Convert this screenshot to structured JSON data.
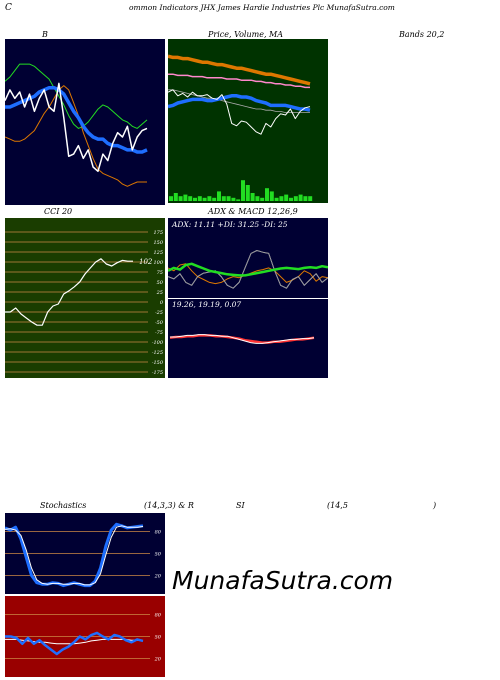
{
  "header": {
    "left_letter": "C",
    "title": "ommon  Indicators JHX  James Hardie  Industries Plc MunafaSutra.com"
  },
  "labels": {
    "bb": "B",
    "price_ma": "Price,  Volume,  MA",
    "bands": "Bands 20,2",
    "cci": "CCI 20",
    "adx_macd": "ADX  & MACD 12,26,9",
    "adx_values": "ADX: 11.11  +DI: 31.25 -DI: 25",
    "macd_values": "19.26,  19.19,  0.07",
    "stoch_a": "Stochastics",
    "stoch_b": "(14,3,3) & R",
    "stoch_c": "SI",
    "stoch_d": "(14,5",
    "stoch_e": ")",
    "watermark": "MunafaSutra.com"
  },
  "colors": {
    "panel_dark": "#000033",
    "panel_green": "#003300",
    "panel_red": "#990000",
    "cci_bg": "#1a3d00",
    "grid_orange": "#cc8844",
    "blue": "#1e6eff",
    "green": "#22dd22",
    "orange": "#dd7700",
    "white": "#ffffff"
  },
  "chart_data": [
    {
      "type": "line",
      "name": "bollinger-bands",
      "series": [
        {
          "name": "upper",
          "values": [
            74,
            76,
            79,
            82,
            82,
            82,
            81,
            79,
            77,
            75,
            71,
            67,
            63,
            58,
            54,
            52,
            53,
            55,
            58,
            61,
            63,
            62,
            60,
            58,
            56,
            55,
            53,
            52,
            54,
            56
          ]
        },
        {
          "name": "middle",
          "values": [
            62,
            62,
            63,
            64,
            65,
            66,
            67,
            69,
            70,
            71,
            71,
            70,
            68,
            64,
            60,
            57,
            53,
            50,
            48,
            47,
            47,
            45,
            44,
            44,
            43,
            42,
            42,
            41,
            41,
            42
          ]
        },
        {
          "name": "lower",
          "values": [
            48,
            47,
            46,
            46,
            47,
            49,
            51,
            55,
            59,
            62,
            66,
            70,
            72,
            70,
            64,
            58,
            50,
            44,
            38,
            33,
            31,
            30,
            29,
            28,
            26,
            25,
            26,
            27,
            27,
            27
          ]
        },
        {
          "name": "close",
          "values": [
            65,
            70,
            66,
            69,
            62,
            68,
            60,
            66,
            70,
            62,
            60,
            73,
            57,
            39,
            40,
            44,
            38,
            42,
            34,
            32,
            40,
            37,
            45,
            50,
            48,
            53,
            42,
            48,
            51,
            52
          ]
        }
      ]
    },
    {
      "type": "line",
      "name": "price-volume-ma",
      "series": [
        {
          "name": "ma-orange",
          "values": [
            94,
            93,
            93,
            92,
            92,
            91,
            90,
            89,
            89,
            88,
            87,
            87,
            86,
            85,
            84,
            84,
            83,
            82,
            81,
            80,
            79,
            79,
            78,
            77,
            76,
            75,
            74,
            73,
            72,
            71
          ]
        },
        {
          "name": "ma-pink",
          "values": [
            79,
            79,
            78,
            78,
            78,
            77,
            77,
            77,
            76,
            76,
            76,
            76,
            75,
            75,
            75,
            74,
            74,
            74,
            73,
            73,
            72,
            72,
            71,
            71,
            70,
            70,
            69,
            69,
            68,
            68
          ]
        },
        {
          "name": "ma-blue",
          "values": [
            52,
            53,
            55,
            56,
            57,
            58,
            58,
            58,
            57,
            57,
            58,
            59,
            60,
            61,
            61,
            60,
            60,
            59,
            57,
            56,
            55,
            53,
            53,
            53,
            53,
            52,
            51,
            50,
            50,
            49
          ]
        },
        {
          "name": "ma-grey",
          "values": [
            66,
            66,
            65,
            64,
            63,
            62,
            61,
            60,
            59,
            59,
            58,
            57,
            56,
            55,
            54,
            53,
            52,
            51,
            50,
            50,
            49,
            49,
            48,
            48,
            47,
            47,
            47,
            47,
            47,
            47
          ]
        },
        {
          "name": "close",
          "values": [
            64,
            66,
            61,
            63,
            60,
            64,
            61,
            61,
            62,
            59,
            58,
            62,
            54,
            38,
            36,
            40,
            39,
            35,
            31,
            29,
            38,
            35,
            42,
            46,
            45,
            50,
            42,
            48,
            51,
            52
          ]
        }
      ],
      "volume": [
        3,
        5,
        3,
        4,
        3,
        2,
        3,
        2,
        3,
        2,
        6,
        3,
        3,
        2,
        1,
        13,
        10,
        5,
        3,
        2,
        8,
        6,
        2,
        3,
        4,
        2,
        3,
        4,
        3,
        3
      ]
    },
    {
      "type": "line",
      "name": "cci-20",
      "ylim": [
        -175,
        175
      ],
      "yticks": [
        175,
        150,
        125,
        100,
        75,
        50,
        25,
        0,
        -25,
        -50,
        -75,
        -100,
        -125,
        -150,
        -175
      ],
      "last_value": 102,
      "series": [
        {
          "name": "cci",
          "values": [
            -25,
            -25,
            -15,
            -30,
            -40,
            -50,
            -58,
            -58,
            -25,
            -10,
            -5,
            20,
            28,
            38,
            50,
            70,
            85,
            100,
            108,
            95,
            90,
            98,
            104,
            102,
            102
          ]
        }
      ]
    },
    {
      "type": "line",
      "name": "adx",
      "adx": 11.11,
      "plus_di": 31.25,
      "minus_di": 25,
      "series": [
        {
          "name": "adx",
          "values": [
            40,
            45,
            42,
            50,
            52,
            48,
            44,
            40,
            38,
            36,
            34,
            33,
            32,
            32,
            34,
            36,
            38,
            40,
            42,
            44,
            45,
            44,
            43,
            45,
            46,
            45,
            48,
            46
          ]
        },
        {
          "name": "+di",
          "values": [
            30,
            26,
            35,
            20,
            15,
            30,
            36,
            38,
            40,
            30,
            15,
            10,
            20,
            45,
            70,
            75,
            72,
            70,
            40,
            15,
            10,
            25,
            30,
            15,
            25,
            35,
            20,
            28
          ]
        },
        {
          "name": "-di",
          "values": [
            45,
            40,
            50,
            52,
            40,
            30,
            25,
            20,
            18,
            20,
            26,
            30,
            28,
            32,
            36,
            40,
            42,
            45,
            40,
            30,
            20,
            24,
            30,
            40,
            35,
            22,
            30,
            28
          ]
        }
      ]
    },
    {
      "type": "line",
      "name": "macd",
      "macd": 19.26,
      "signal": 19.19,
      "histogram": 0.07,
      "series": [
        {
          "name": "macd",
          "values": [
            22,
            22,
            23,
            24,
            24,
            25,
            25,
            24,
            24,
            23,
            23,
            21,
            19,
            17,
            15,
            14,
            14,
            15,
            16,
            17,
            18,
            19,
            19,
            20,
            20,
            21
          ]
        },
        {
          "name": "signal",
          "values": [
            21,
            22,
            22,
            23,
            23,
            24,
            24,
            24,
            23,
            23,
            22,
            21,
            20,
            18,
            17,
            16,
            15,
            15,
            16,
            16,
            17,
            18,
            19,
            19,
            20,
            21
          ]
        }
      ]
    },
    {
      "type": "line",
      "name": "stochastics",
      "ylim": [
        0,
        100
      ],
      "yticks": [
        80,
        50,
        20
      ],
      "series": [
        {
          "name": "%k",
          "values": [
            85,
            82,
            86,
            70,
            45,
            20,
            10,
            8,
            8,
            10,
            9,
            6,
            8,
            10,
            8,
            6,
            6,
            12,
            30,
            60,
            82,
            90,
            88,
            85,
            86,
            87,
            88
          ]
        },
        {
          "name": "%d",
          "values": [
            83,
            84,
            82,
            75,
            55,
            30,
            14,
            9,
            8,
            9,
            9,
            8,
            8,
            9,
            9,
            7,
            7,
            10,
            22,
            48,
            72,
            86,
            88,
            86,
            86,
            86,
            87
          ]
        }
      ]
    },
    {
      "type": "line",
      "name": "rsi",
      "ylim": [
        0,
        100
      ],
      "yticks": [
        80,
        50,
        20
      ],
      "series": [
        {
          "name": "rsi",
          "values": [
            50,
            50,
            48,
            40,
            48,
            40,
            45,
            38,
            32,
            26,
            32,
            36,
            42,
            50,
            46,
            52,
            55,
            50,
            46,
            52,
            50,
            45,
            42,
            46,
            44
          ]
        },
        {
          "name": "rsi-ma",
          "values": [
            46,
            46,
            46,
            45,
            44,
            43,
            42,
            42,
            41,
            40,
            40,
            40,
            40,
            41,
            42,
            44,
            45,
            46,
            46,
            46,
            46,
            46,
            45,
            45,
            44
          ]
        }
      ]
    }
  ]
}
